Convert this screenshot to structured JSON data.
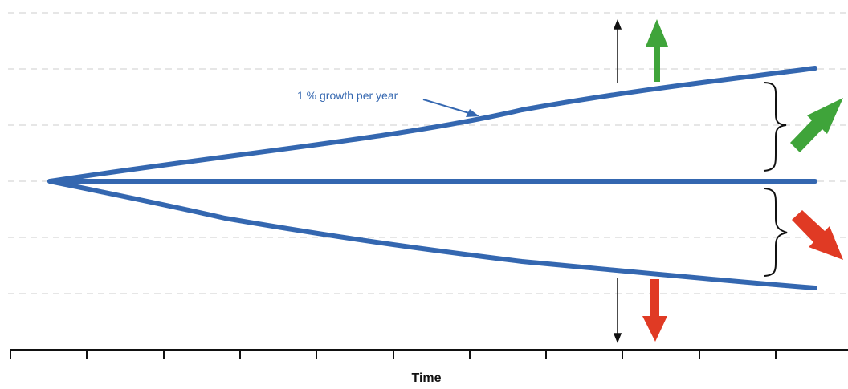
{
  "diagram": {
    "annotation": "1 % growth per year",
    "x_axis_label": "Time",
    "colors": {
      "line": "#3467b0",
      "gridline": "#cccccc",
      "up_arrow": "#3fa43a",
      "down_arrow": "#e03a24",
      "axis": "#111111"
    },
    "icons": [
      "up-arrow-icon",
      "diagonal-up-arrow-icon",
      "diagonal-down-arrow-icon",
      "down-arrow-icon"
    ]
  }
}
